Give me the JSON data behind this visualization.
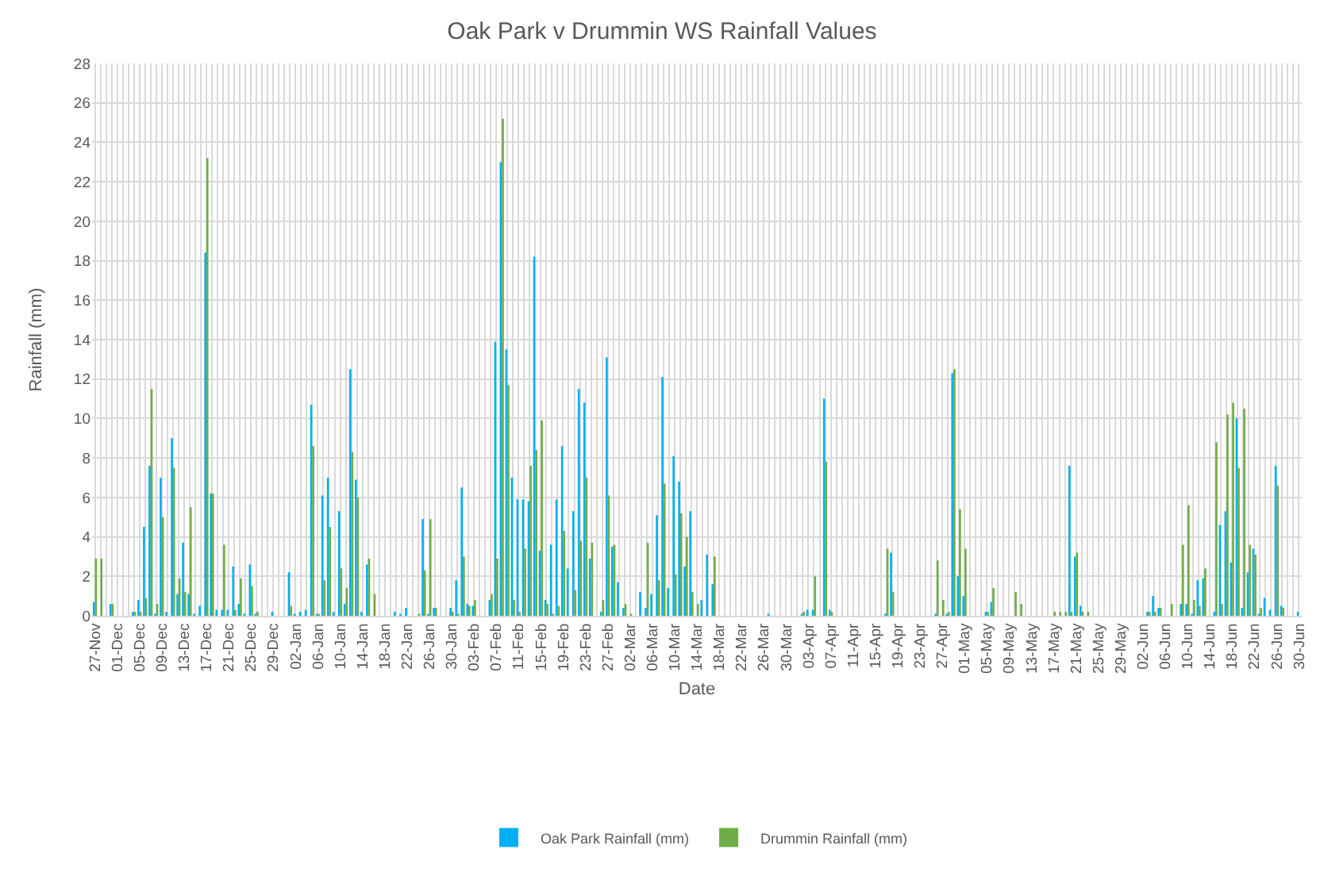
{
  "chart_data": {
    "type": "bar",
    "title": "Oak Park v Drummin WS Rainfall Values",
    "xlabel": "Date",
    "ylabel": "Rainfall (mm)",
    "categories": [
      "27-Nov",
      null,
      null,
      null,
      "01-Dec",
      null,
      null,
      null,
      "05-Dec",
      null,
      null,
      null,
      "09-Dec",
      null,
      null,
      null,
      "13-Dec",
      null,
      null,
      null,
      "17-Dec",
      null,
      null,
      null,
      "21-Dec",
      null,
      null,
      null,
      "25-Dec",
      null,
      null,
      null,
      "29-Dec",
      null,
      null,
      null,
      "02-Jan",
      null,
      null,
      null,
      "06-Jan",
      null,
      null,
      null,
      "10-Jan",
      null,
      null,
      null,
      "14-Jan",
      null,
      null,
      null,
      "18-Jan",
      null,
      null,
      null,
      "22-Jan",
      null,
      null,
      null,
      "26-Jan",
      null,
      null,
      null,
      "30-Jan",
      null,
      null,
      null,
      "03-Feb",
      null,
      null,
      null,
      "07-Feb",
      null,
      null,
      null,
      "11-Feb",
      null,
      null,
      null,
      "15-Feb",
      null,
      null,
      null,
      "19-Feb",
      null,
      null,
      null,
      "23-Feb",
      null,
      null,
      null,
      "27-Feb",
      null,
      null,
      null,
      "02-Mar",
      null,
      null,
      null,
      "06-Mar",
      null,
      null,
      null,
      "10-Mar",
      null,
      null,
      null,
      "14-Mar",
      null,
      null,
      null,
      "18-Mar",
      null,
      null,
      null,
      "22-Mar",
      null,
      null,
      null,
      "26-Mar",
      null,
      null,
      null,
      "30-Mar",
      null,
      null,
      null,
      "03-Apr",
      null,
      null,
      null,
      "07-Apr",
      null,
      null,
      null,
      "11-Apr",
      null,
      null,
      null,
      "15-Apr",
      null,
      null,
      null,
      "19-Apr",
      null,
      null,
      null,
      "23-Apr",
      null,
      null,
      null,
      "27-Apr",
      null,
      null,
      null,
      "01-May",
      null,
      null,
      null,
      "05-May",
      null,
      null,
      null,
      "09-May",
      null,
      null,
      null,
      "13-May",
      null,
      null,
      null,
      "17-May",
      null,
      null,
      null,
      "21-May",
      null,
      null,
      null,
      "25-May",
      null,
      null,
      null,
      "29-May",
      null,
      null,
      null,
      "02-Jun",
      null,
      null,
      null,
      "06-Jun",
      null,
      null,
      null,
      "10-Jun",
      null,
      null,
      null,
      "14-Jun",
      null,
      null,
      null,
      "18-Jun",
      null,
      null,
      null,
      "22-Jun",
      null,
      null,
      null,
      "26-Jun",
      null,
      null,
      null,
      "30-Jun"
    ],
    "series": [
      {
        "name": "Oak Park Rainfall (mm)",
        "color": "#00b0f0",
        "values": [
          0.7,
          0,
          0,
          0.6,
          0,
          0,
          0,
          0.2,
          0.8,
          4.5,
          7.6,
          0.1,
          7.0,
          0.2,
          9.0,
          1.1,
          3.7,
          1.1,
          0.1,
          0.5,
          18.4,
          6.2,
          0.3,
          0.3,
          0.3,
          2.5,
          0.6,
          0.1,
          2.6,
          0.1,
          0,
          0,
          0.2,
          0,
          0,
          2.2,
          0.1,
          0.2,
          0.3,
          10.7,
          0.1,
          6.1,
          7.0,
          0.2,
          5.3,
          0.6,
          12.5,
          6.9,
          0.2,
          2.6,
          0,
          0,
          0,
          0,
          0.2,
          0.1,
          0.4,
          0,
          0,
          4.9,
          0.1,
          0.4,
          0,
          0,
          0.4,
          1.8,
          6.5,
          0.6,
          0.5,
          0,
          0,
          0.8,
          13.9,
          23.0,
          13.5,
          7.0,
          5.9,
          5.9,
          5.8,
          18.2,
          3.3,
          0.8,
          3.6,
          5.9,
          8.6,
          2.4,
          5.3,
          11.5,
          10.8,
          2.9,
          0,
          0.2,
          13.1,
          3.5,
          1.7,
          0.4,
          0,
          0,
          1.2,
          0.4,
          1.1,
          5.1,
          12.1,
          1.4,
          8.1,
          6.8,
          2.5,
          5.3,
          0,
          0.8,
          3.1,
          1.6,
          0,
          0,
          0,
          0,
          0,
          0,
          0,
          0,
          0,
          0.1,
          0,
          0,
          0,
          0,
          0,
          0.1,
          0.3,
          0.3,
          0,
          11.0,
          0.3,
          0,
          0,
          0,
          0,
          0,
          0,
          0,
          0,
          0,
          0.1,
          3.2,
          0,
          0,
          0,
          0,
          0,
          0,
          0,
          0.1,
          0,
          0.1,
          12.3,
          2.0,
          1.0,
          0,
          0,
          0,
          0.2,
          0.7,
          0,
          0,
          0,
          0,
          0,
          0,
          0,
          0,
          0,
          0,
          0,
          0,
          0,
          7.6,
          3.0,
          0.5,
          0,
          0,
          0,
          0,
          0,
          0,
          0,
          0,
          0,
          0,
          0,
          0.2,
          1.0,
          0.4,
          0,
          0,
          0,
          0.6,
          0.6,
          0.1,
          1.8,
          1.9,
          0,
          0.2,
          4.6,
          5.3,
          2.7,
          10.0,
          0.4,
          2.2,
          3.4,
          0.1,
          0.9,
          0.3,
          7.6,
          0.5,
          0,
          0,
          0.2
        ]
      },
      {
        "name": "Drummin Rainfall (mm)",
        "color": "#70ad47",
        "values": [
          2.9,
          2.9,
          0,
          0.6,
          0,
          0,
          0,
          0.2,
          0.2,
          0.9,
          11.5,
          0.6,
          5.0,
          0,
          7.5,
          1.9,
          1.2,
          5.5,
          0,
          0,
          23.2,
          6.2,
          0,
          3.6,
          0,
          0.3,
          1.9,
          0,
          1.5,
          0.2,
          0,
          0,
          0,
          0,
          0,
          0.5,
          0,
          0,
          0,
          8.6,
          0.1,
          1.8,
          4.5,
          0,
          2.4,
          1.4,
          8.3,
          6.0,
          0,
          2.9,
          1.1,
          0,
          0,
          0,
          0,
          0,
          0,
          0,
          0.1,
          2.3,
          4.9,
          0.4,
          0,
          0,
          0.2,
          0.1,
          3.0,
          0.5,
          0.8,
          0,
          0,
          1.1,
          2.9,
          25.2,
          11.7,
          0.8,
          0.2,
          3.4,
          7.6,
          8.4,
          9.9,
          0.6,
          0.1,
          0.5,
          4.3,
          0,
          1.3,
          3.8,
          7.0,
          3.7,
          0,
          0.8,
          6.1,
          3.6,
          0,
          0.6,
          0.1,
          0,
          0,
          3.7,
          0,
          1.8,
          6.7,
          0,
          2.1,
          5.2,
          4.0,
          1.2,
          0.6,
          0,
          0,
          3.0,
          0,
          0,
          0,
          0,
          0,
          0,
          0,
          0,
          0,
          0,
          0,
          0,
          0,
          0,
          0,
          0.2,
          0,
          2.0,
          0,
          7.8,
          0.2,
          0,
          0,
          0,
          0,
          0,
          0,
          0,
          0,
          0,
          3.4,
          1.2,
          0,
          0,
          0,
          0,
          0,
          0,
          0,
          2.8,
          0.8,
          0.2,
          12.5,
          5.4,
          3.4,
          0,
          0,
          0,
          0.2,
          1.4,
          0,
          0,
          0,
          1.2,
          0.6,
          0,
          0,
          0,
          0,
          0,
          0.2,
          0.2,
          0.2,
          0.2,
          3.2,
          0.2,
          0.2,
          0,
          0,
          0,
          0,
          0,
          0,
          0,
          0,
          0,
          0,
          0.2,
          0.2,
          0.4,
          0,
          0.6,
          0,
          3.6,
          5.6,
          0.8,
          0.5,
          2.4,
          0,
          8.8,
          0.6,
          10.2,
          10.8,
          7.5,
          10.5,
          3.6,
          3.1,
          0.4,
          0,
          0,
          6.6,
          0.4,
          0,
          0,
          0
        ]
      }
    ],
    "ylim": [
      0,
      28
    ],
    "yticks": [
      0,
      2,
      4,
      6,
      8,
      10,
      12,
      14,
      16,
      18,
      20,
      22,
      24,
      26,
      28
    ],
    "grid": true,
    "legend": "bottom"
  }
}
